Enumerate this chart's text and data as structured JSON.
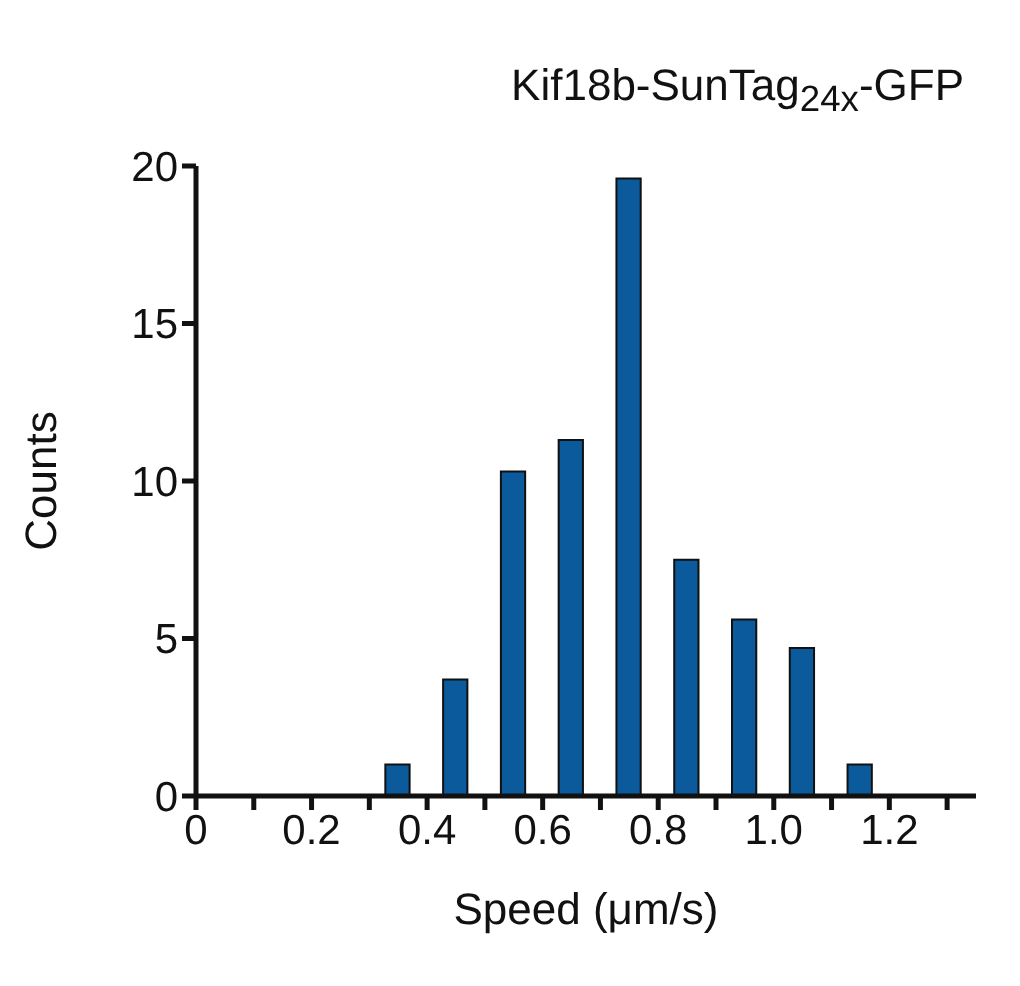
{
  "chart_data": {
    "type": "histogram",
    "title": "Kif18b-SunTag$_{24x}$-GFP",
    "xlabel": "Speed (μm/s)",
    "ylabel": "Counts",
    "bins": [
      0.3,
      0.4,
      0.5,
      0.6,
      0.7,
      0.8,
      0.9,
      1.0,
      1.1,
      1.2
    ],
    "values": [
      1,
      3.7,
      10.3,
      11.3,
      19.6,
      7.5,
      5.6,
      4.7,
      1
    ],
    "color": "#0a5a9c",
    "xlim": [
      0,
      1.35
    ],
    "xticks": [
      0,
      {
        "value": 0.1,
        "label": null
      },
      0.2,
      {
        "value": 0.3,
        "label": null
      },
      0.4,
      {
        "value": 0.5,
        "label": null
      },
      0.6,
      {
        "value": 0.7,
        "label": null
      },
      0.8,
      {
        "value": 0.9,
        "label": null
      },
      {
        "value": 1,
        "label": "1.0"
      },
      {
        "value": 1.1,
        "label": null
      },
      1.2,
      {
        "value": 1.3,
        "label": null
      }
    ],
    "ylim": [
      0,
      20
    ],
    "yticks": [
      0,
      5,
      10,
      15,
      20
    ],
    "grid": false,
    "legend": false
  }
}
